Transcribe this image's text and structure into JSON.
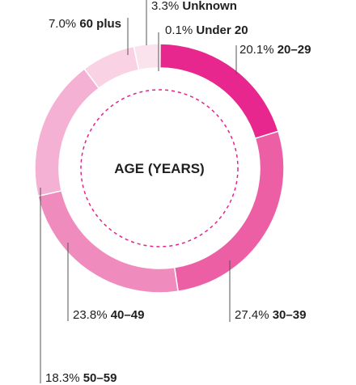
{
  "chart_data": {
    "type": "pie",
    "style": "donut",
    "center_label": "AGE (YEARS)",
    "slices": [
      {
        "label": "Under 20",
        "value": 0.1,
        "value_text": "0.1%",
        "color": "#e3238f"
      },
      {
        "label": "20–29",
        "value": 20.1,
        "value_text": "20.1%",
        "color": "#e8278e"
      },
      {
        "label": "30–39",
        "value": 27.4,
        "value_text": "27.4%",
        "color": "#ec5fa5"
      },
      {
        "label": "40–49",
        "value": 23.8,
        "value_text": "23.8%",
        "color": "#f08cbd"
      },
      {
        "label": "50–59",
        "value": 18.3,
        "value_text": "18.3%",
        "color": "#f5b1d3"
      },
      {
        "label": "60 plus",
        "value": 7.0,
        "value_text": "7.0%",
        "color": "#f9d2e4"
      },
      {
        "label": "Unknown",
        "value": 3.3,
        "value_text": "3.3%",
        "color": "#fbe3ee"
      }
    ],
    "inner_circle_color": "#e3238f"
  }
}
